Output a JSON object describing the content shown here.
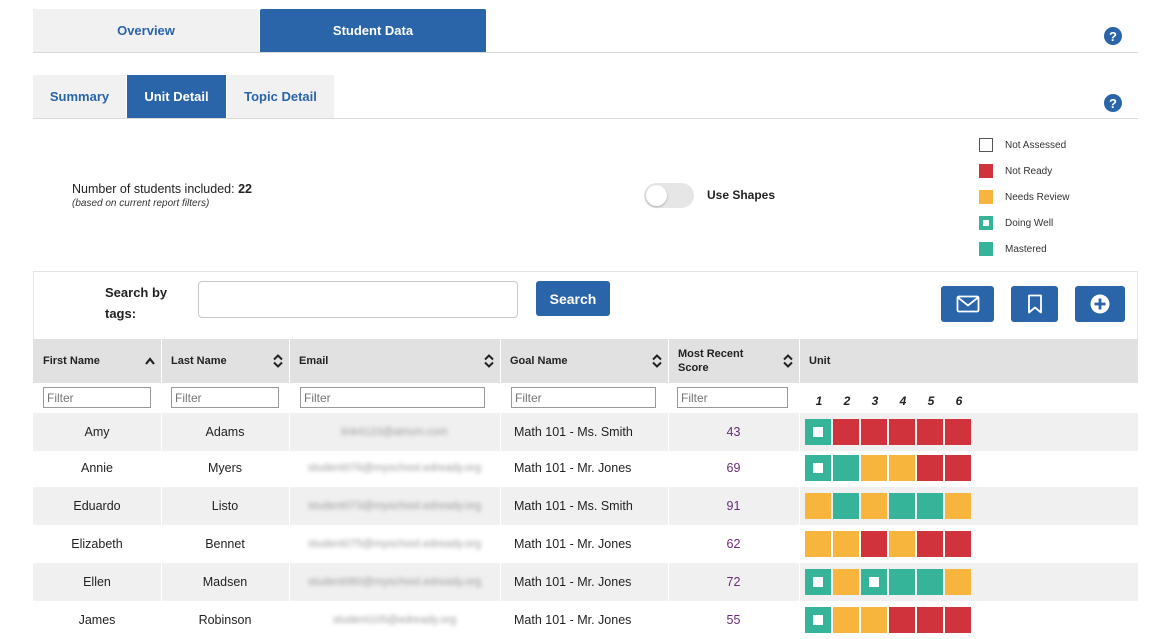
{
  "top_tabs": [
    {
      "label": "Overview",
      "active": false
    },
    {
      "label": "Student Data",
      "active": true
    }
  ],
  "sub_tabs": [
    {
      "label": "Summary",
      "active": false
    },
    {
      "label": "Unit Detail",
      "active": true
    },
    {
      "label": "Topic Detail",
      "active": false
    }
  ],
  "help_label": "?",
  "info": {
    "count_label": "Number of students included: ",
    "count_value": "22",
    "count_note": "(based on current report filters)"
  },
  "toggle": {
    "label": "Use Shapes",
    "on": false
  },
  "legend": [
    {
      "label": "Not Assessed",
      "status": "none"
    },
    {
      "label": "Not Ready",
      "status": "notready"
    },
    {
      "label": "Needs Review",
      "status": "review"
    },
    {
      "label": "Doing Well",
      "status": "well"
    },
    {
      "label": "Mastered",
      "status": "mastered"
    }
  ],
  "colors": {
    "primary": "#2a64a9",
    "mastered": "#35b49a",
    "not_ready": "#d0333c",
    "needs_review": "#f8b53d",
    "score_text": "#6b2a7a"
  },
  "toolbar": {
    "search_label": "Search by tags:",
    "search_value": "",
    "search_placeholder": "",
    "search_button": "Search",
    "icons": [
      "envelope-icon",
      "bookmark-icon",
      "plus-circle-icon"
    ]
  },
  "table": {
    "columns": [
      {
        "label": "First Name",
        "sort": "asc"
      },
      {
        "label": "Last Name",
        "sort": "both"
      },
      {
        "label": "Email",
        "sort": "both"
      },
      {
        "label": "Goal Name",
        "sort": "both"
      },
      {
        "label": "Most Recent Score",
        "sort": "both"
      },
      {
        "label": "Unit",
        "sort": "none"
      }
    ],
    "filter_placeholder": "Filter",
    "units": [
      "1",
      "2",
      "3",
      "4",
      "5",
      "6"
    ],
    "rows": [
      {
        "first": "Amy",
        "last": "Adams",
        "email": "link4123@atrium.com",
        "goal": "Math 101 - Ms. Smith",
        "score": "43",
        "units": [
          "well",
          "notready",
          "notready",
          "notready",
          "notready",
          "notready"
        ]
      },
      {
        "first": "Annie",
        "last": "Myers",
        "email": "student076@myschool.edready.org",
        "goal": "Math 101 - Mr. Jones",
        "score": "69",
        "units": [
          "well",
          "mastered",
          "review",
          "review",
          "notready",
          "notready"
        ]
      },
      {
        "first": "Eduardo",
        "last": "Listo",
        "email": "student073@myschool.edready.org",
        "goal": "Math 101 - Ms. Smith",
        "score": "91",
        "units": [
          "review",
          "mastered",
          "review",
          "mastered",
          "mastered",
          "review"
        ]
      },
      {
        "first": "Elizabeth",
        "last": "Bennet",
        "email": "student075@myschool.edready.org",
        "goal": "Math 101 - Mr. Jones",
        "score": "62",
        "units": [
          "review",
          "review",
          "notready",
          "review",
          "notready",
          "notready"
        ]
      },
      {
        "first": "Ellen",
        "last": "Madsen",
        "email": "student080@myschool.edready.org",
        "goal": "Math 101 - Mr. Jones",
        "score": "72",
        "units": [
          "well",
          "review",
          "well",
          "mastered",
          "mastered",
          "review"
        ]
      },
      {
        "first": "James",
        "last": "Robinson",
        "email": "student105@edready.org",
        "goal": "Math 101 - Mr. Jones",
        "score": "55",
        "units": [
          "well",
          "review",
          "review",
          "notready",
          "notready",
          "notready"
        ]
      }
    ]
  }
}
